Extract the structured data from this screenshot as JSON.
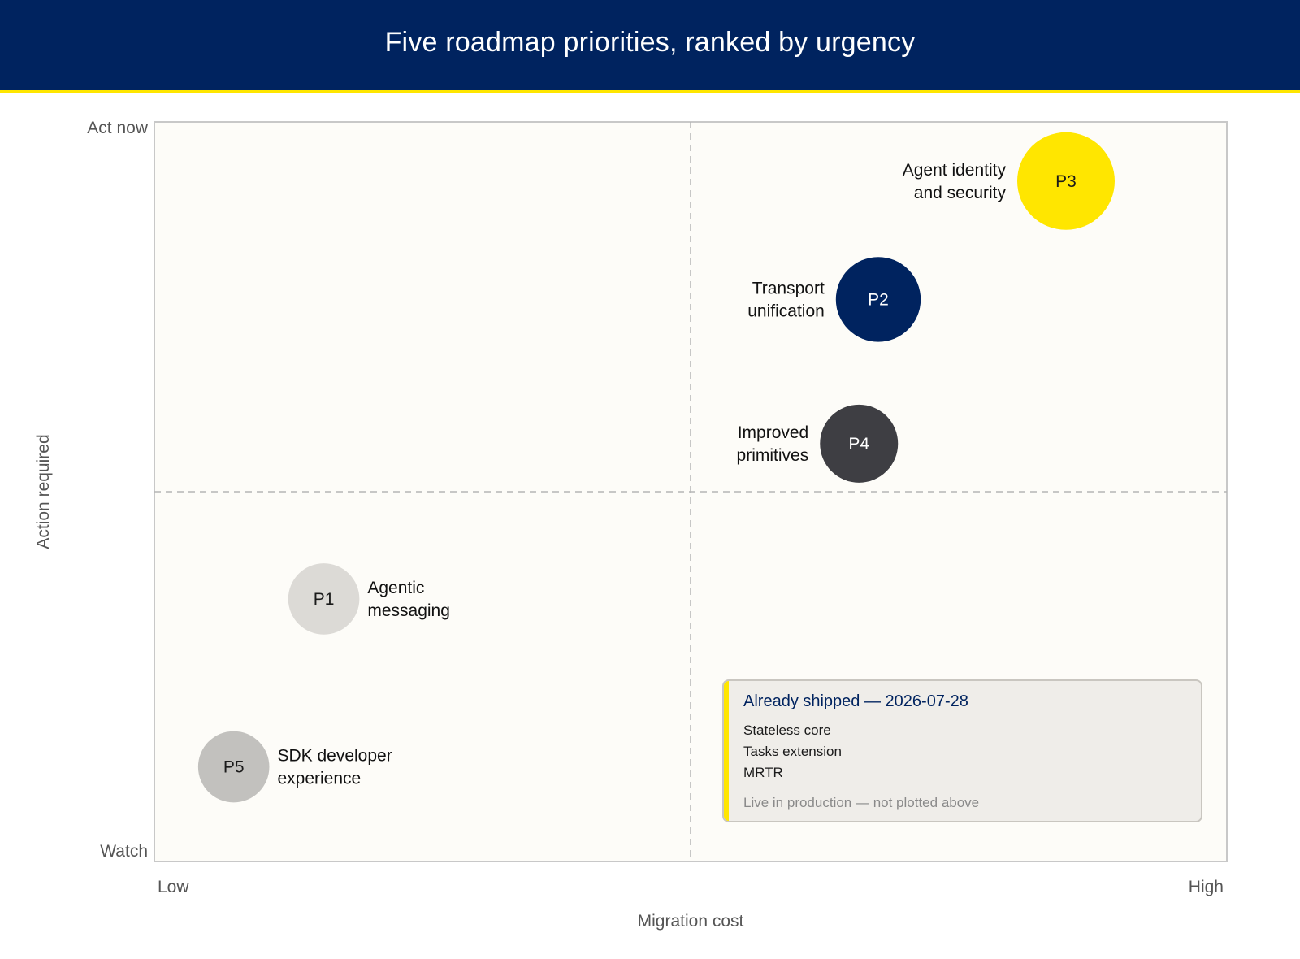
{
  "header": {
    "title": "Five roadmap priorities, ranked by urgency"
  },
  "colors": {
    "header_bg": "#00235f",
    "accent": "#ffe600",
    "plot_bg": "#fdfcf8"
  },
  "chart_data": {
    "type": "scatter",
    "title": "Five roadmap priorities, ranked by urgency",
    "xlabel": "Migration cost",
    "ylabel": "Action required",
    "x_ticks": {
      "low": "Low",
      "high": "High"
    },
    "y_ticks": {
      "low": "Watch",
      "high": "Act now"
    },
    "xlim": [
      0,
      1
    ],
    "ylim": [
      0,
      1
    ],
    "quadrant_dividers": {
      "x": 0.5,
      "y": 0.5
    },
    "grid": false,
    "points": [
      {
        "id": "P3",
        "label": [
          "Agent identity",
          "and security"
        ],
        "x": 0.85,
        "y": 0.92,
        "size": 1.0,
        "color": "#ffe600",
        "text_color": "#1b1b1b",
        "label_side": "left"
      },
      {
        "id": "P2",
        "label": [
          "Transport",
          "unification"
        ],
        "x": 0.675,
        "y": 0.76,
        "size": 0.87,
        "color": "#00235f",
        "text_color": "#ffffff",
        "label_side": "left"
      },
      {
        "id": "P4",
        "label": [
          "Improved",
          "primitives"
        ],
        "x": 0.657,
        "y": 0.565,
        "size": 0.8,
        "color": "#3e3e43",
        "text_color": "#ffffff",
        "label_side": "left"
      },
      {
        "id": "P1",
        "label": [
          "Agentic",
          "messaging"
        ],
        "x": 0.158,
        "y": 0.355,
        "size": 0.73,
        "color": "#dcdad6",
        "text_color": "#1b1b1b",
        "label_side": "right"
      },
      {
        "id": "P5",
        "label": [
          "SDK developer",
          "experience"
        ],
        "x": 0.074,
        "y": 0.128,
        "size": 0.73,
        "color": "#c2c1be",
        "text_color": "#1b1b1b",
        "label_side": "right"
      }
    ]
  },
  "shipped": {
    "title": "Already shipped — 2026-07-28",
    "items": [
      "Stateless core",
      "Tasks extension",
      "MRTR"
    ],
    "note": "Live in production — not plotted above"
  }
}
